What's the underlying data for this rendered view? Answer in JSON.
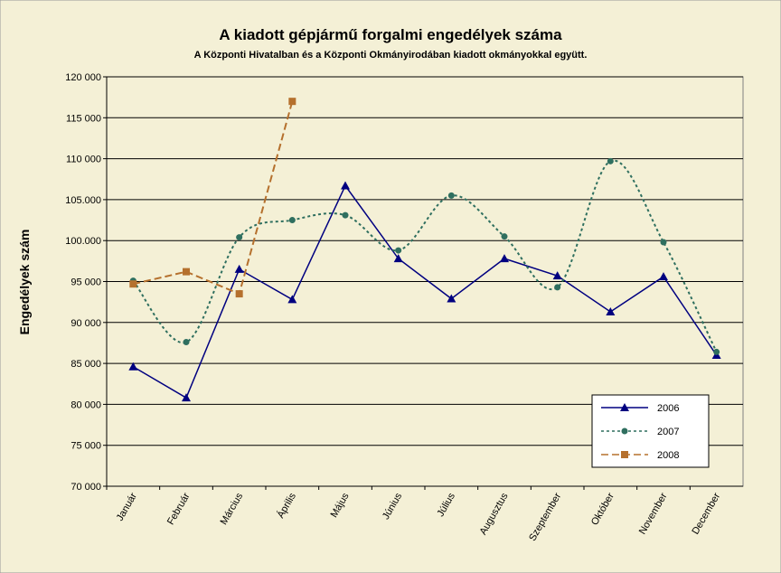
{
  "chart_data": {
    "type": "line",
    "title": "A  kiadott gépjármű forgalmi engedélyek száma",
    "subtitle": "A  Központi Hivatalban és a Központi Okmányirodában kiadott okmányokkal együtt.",
    "y_label": "Engedélyek szám",
    "categories": [
      "Január",
      "Február",
      "Március",
      "Április",
      "Május",
      "Június",
      "Július",
      "Augusztus",
      "Szeptember",
      "Október",
      "November",
      "December"
    ],
    "series": [
      {
        "name": "2006",
        "color": "#000080",
        "style": "solid",
        "marker": "triangle",
        "smooth": false,
        "values": [
          84600,
          80800,
          96500,
          92800,
          106700,
          97800,
          92900,
          97800,
          95700,
          91300,
          95600,
          86000
        ]
      },
      {
        "name": "2007",
        "color": "#2f6f5f",
        "style": "dotted",
        "marker": "circle",
        "smooth": true,
        "values": [
          95100,
          87600,
          100400,
          102500,
          103100,
          98800,
          105500,
          100500,
          94300,
          109700,
          99800,
          86400
        ]
      },
      {
        "name": "2008",
        "color": "#b5702d",
        "style": "dashed",
        "marker": "square",
        "smooth": false,
        "values": [
          94700,
          96200,
          93500,
          117000,
          null,
          null,
          null,
          null,
          null,
          null,
          null,
          null
        ]
      }
    ],
    "ylim": [
      70000,
      120000
    ],
    "yticks": [
      {
        "value": 70000,
        "label": "70 000"
      },
      {
        "value": 75000,
        "label": "75 000"
      },
      {
        "value": 80000,
        "label": "80 000"
      },
      {
        "value": 85000,
        "label": "85 000"
      },
      {
        "value": 90000,
        "label": "90 000"
      },
      {
        "value": 95000,
        "label": "95 000"
      },
      {
        "value": 100000,
        "label": "100.000"
      },
      {
        "value": 105000,
        "label": "105.000"
      },
      {
        "value": 110000,
        "label": "110 000"
      },
      {
        "value": 115000,
        "label": "115 000"
      },
      {
        "value": 120000,
        "label": "120 000"
      }
    ],
    "grid": true,
    "legend": "lower right"
  }
}
